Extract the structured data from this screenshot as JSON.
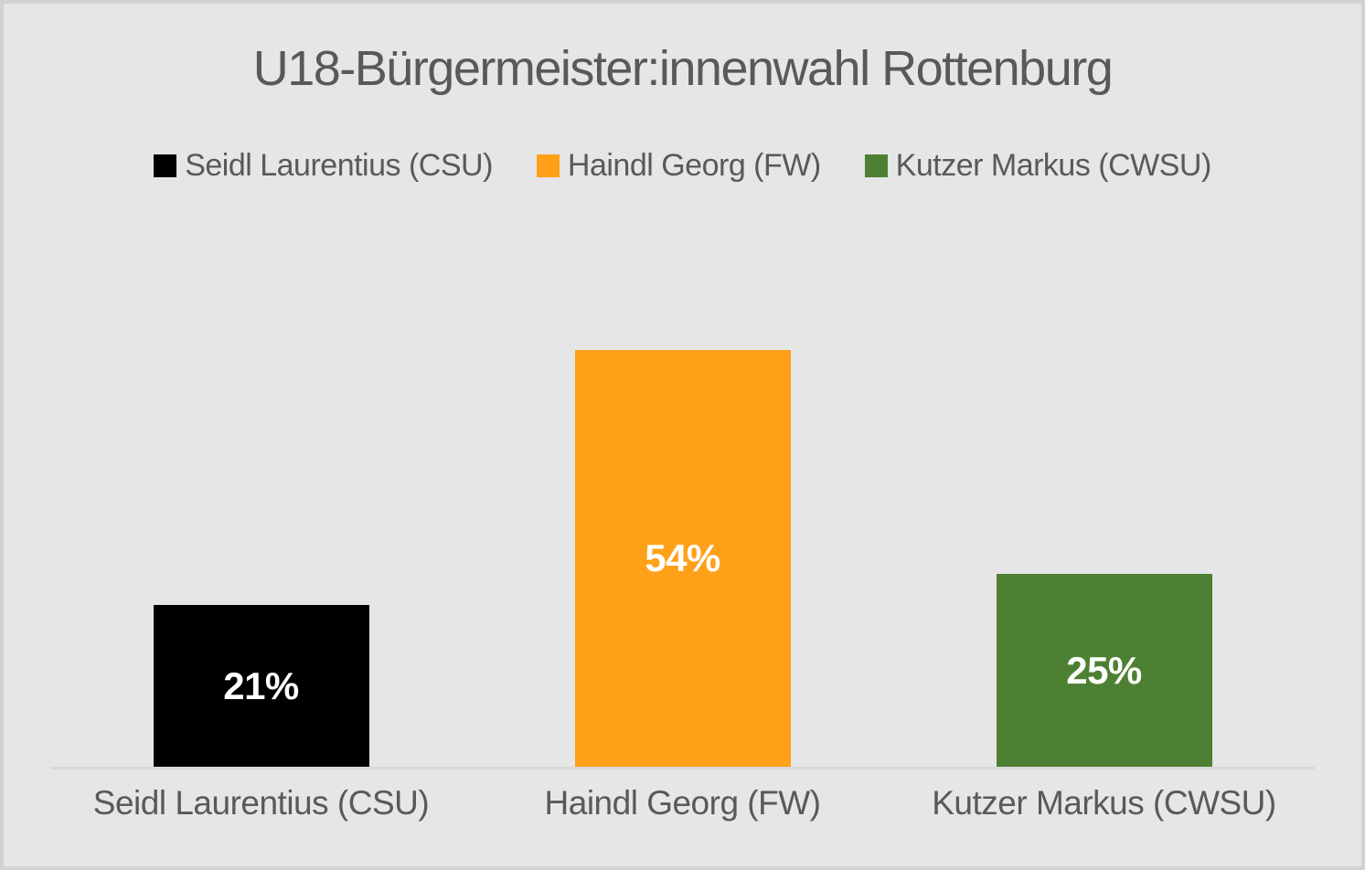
{
  "window": {
    "background_color": "#E6E6E6",
    "frame_color": "#D2D2D2"
  },
  "chart_data": {
    "type": "bar",
    "title": "U18-Bürgermeister:innenwahl Rottenburg",
    "categories": [
      "Seidl Laurentius (CSU)",
      "Haindl Georg (FW)",
      "Kutzer Markus (CWSU)"
    ],
    "values": [
      21,
      54,
      25
    ],
    "value_labels": [
      "21%",
      "54%",
      "25%"
    ],
    "unit": "percent",
    "series_colors": [
      "#000000",
      "#FFA019",
      "#4E8033"
    ],
    "value_label_color": "#FFFFFF",
    "legend": {
      "position": "top",
      "entries": [
        {
          "label": "Seidl Laurentius (CSU)",
          "color": "#000000"
        },
        {
          "label": "Haindl Georg (FW)",
          "color": "#FFA019"
        },
        {
          "label": "Kutzer Markus (CWSU)",
          "color": "#4E8033"
        }
      ]
    },
    "xlabel": "",
    "ylabel": "",
    "ylim": [
      0,
      60
    ],
    "grid": false,
    "y_axis_visible": false,
    "x_axis_line_color": "#D9D9D9",
    "text_color": "#595959"
  }
}
